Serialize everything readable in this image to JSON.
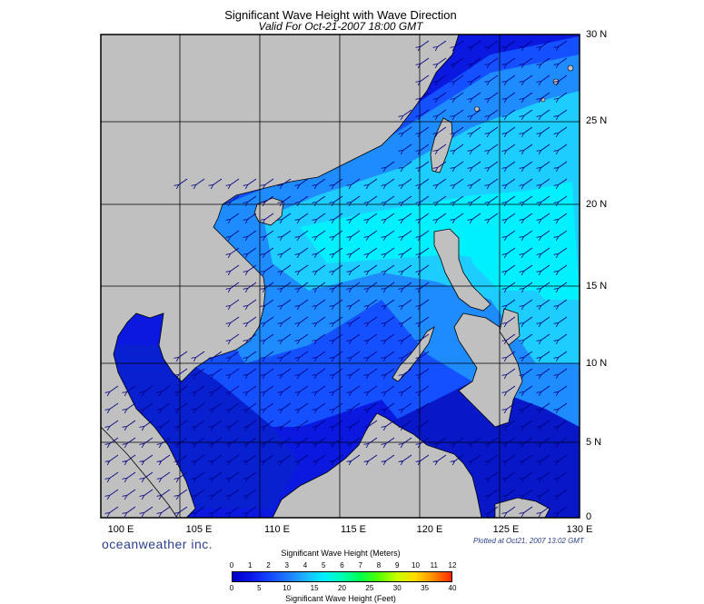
{
  "title": "Significant Wave Height with Wave Direction",
  "subtitle": "Valid For Oct-21-2007 18:00 GMT",
  "lat_labels": [
    "30 N",
    "25 N",
    "20 N",
    "15 N",
    "10 N",
    "5 N",
    "0"
  ],
  "lon_labels": [
    "100 E",
    "105 E",
    "110 E",
    "115 E",
    "120 E",
    "125 E",
    "130 E"
  ],
  "brand": "oceanweather inc.",
  "plotted": "Plotted at Oct21, 2007 13:02 GMT",
  "colorbar": {
    "meters_title": "Significant Wave Height (Meters)",
    "feet_title": "Significant Wave Height (Feet)",
    "meters_ticks": [
      "0",
      "1",
      "2",
      "3",
      "4",
      "5",
      "6",
      "7",
      "8",
      "9",
      "10",
      "11",
      "12"
    ],
    "feet_ticks": [
      "0",
      "5",
      "10",
      "15",
      "20",
      "25",
      "30",
      "35",
      "40"
    ],
    "colors": [
      "#0000c8",
      "#0a14e6",
      "#1446ff",
      "#1e78ff",
      "#1eb4ff",
      "#00f0ff",
      "#00ffb4",
      "#00ff50",
      "#50ff00",
      "#c8ff00",
      "#ffdc00",
      "#ff8c00",
      "#ff2800"
    ]
  },
  "colors": {
    "land": "#c0c0c0",
    "sea_low": "#0a14dc",
    "sea_high": "#00f0ff",
    "arrow": "#000080"
  }
}
